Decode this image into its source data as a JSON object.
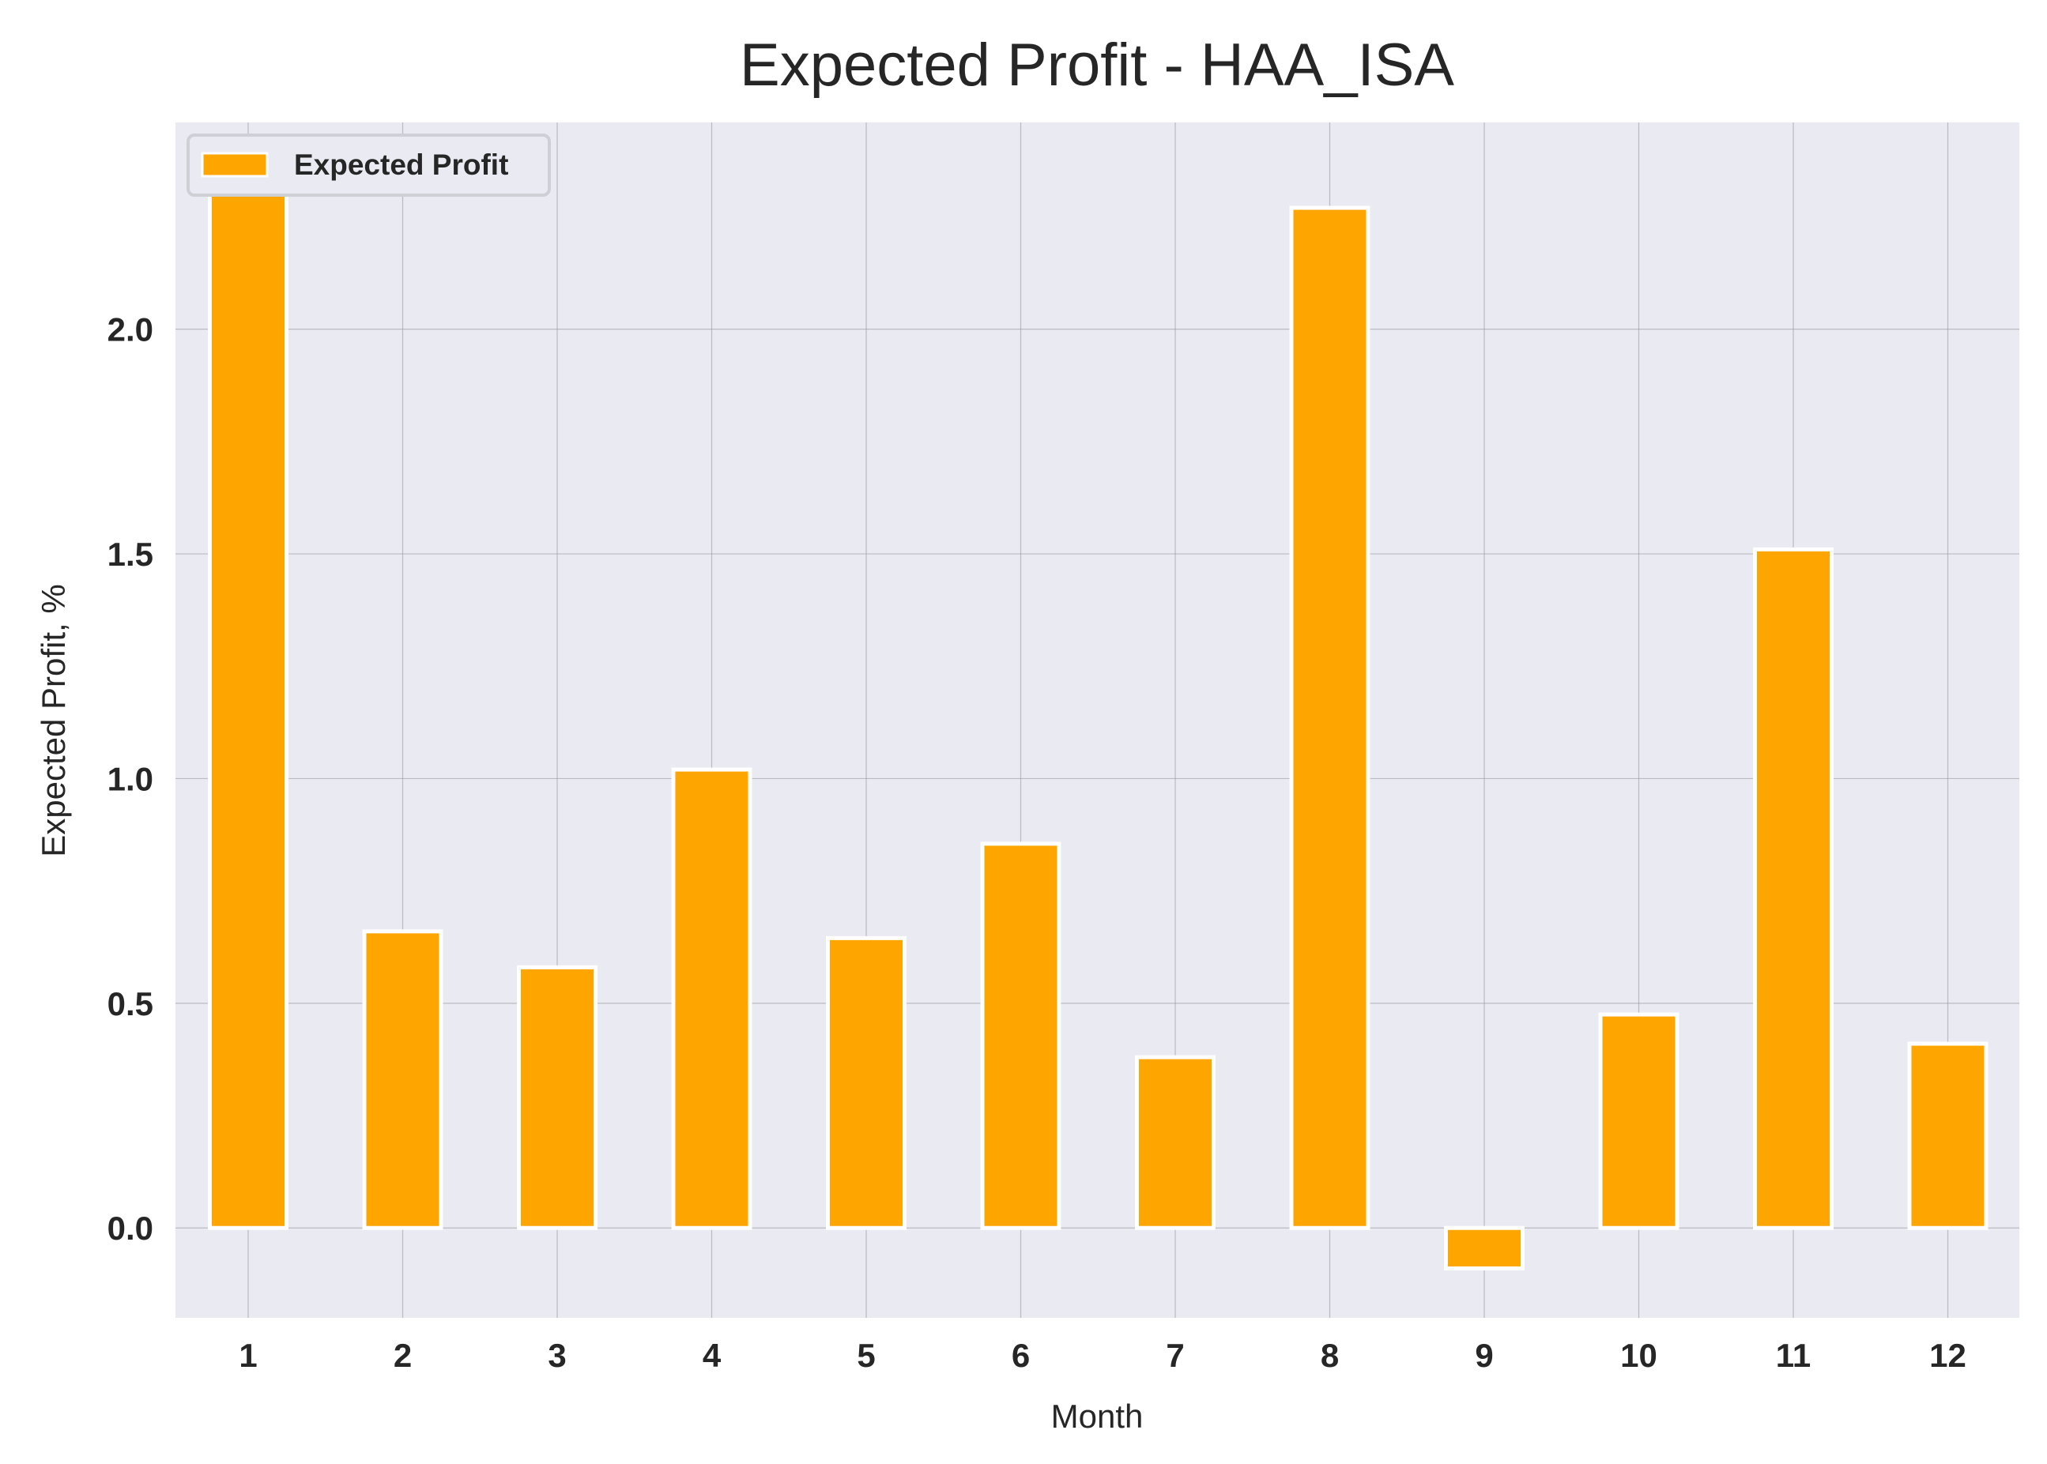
{
  "chart_data": {
    "type": "bar",
    "title": "Expected Profit - HAA_ISA",
    "xlabel": "Month",
    "ylabel": "Expected Profit, %",
    "categories": [
      "1",
      "2",
      "3",
      "4",
      "5",
      "6",
      "7",
      "8",
      "9",
      "10",
      "11",
      "12"
    ],
    "series": [
      {
        "name": "Expected Profit",
        "color": "#FFA500",
        "values": [
          2.37,
          0.66,
          0.58,
          1.02,
          0.645,
          0.855,
          0.38,
          2.27,
          -0.09,
          0.475,
          1.51,
          0.41
        ]
      }
    ],
    "ylim": [
      -0.2,
      2.46
    ],
    "yticks": [
      "0.0",
      "0.5",
      "1.0",
      "1.5",
      "2.0"
    ],
    "grid": true,
    "legend_position": "top-left",
    "colors": {
      "plot_background": "#EAEAF2",
      "grid": "#9a9aa0",
      "bar_edge": "#ffffff"
    }
  }
}
